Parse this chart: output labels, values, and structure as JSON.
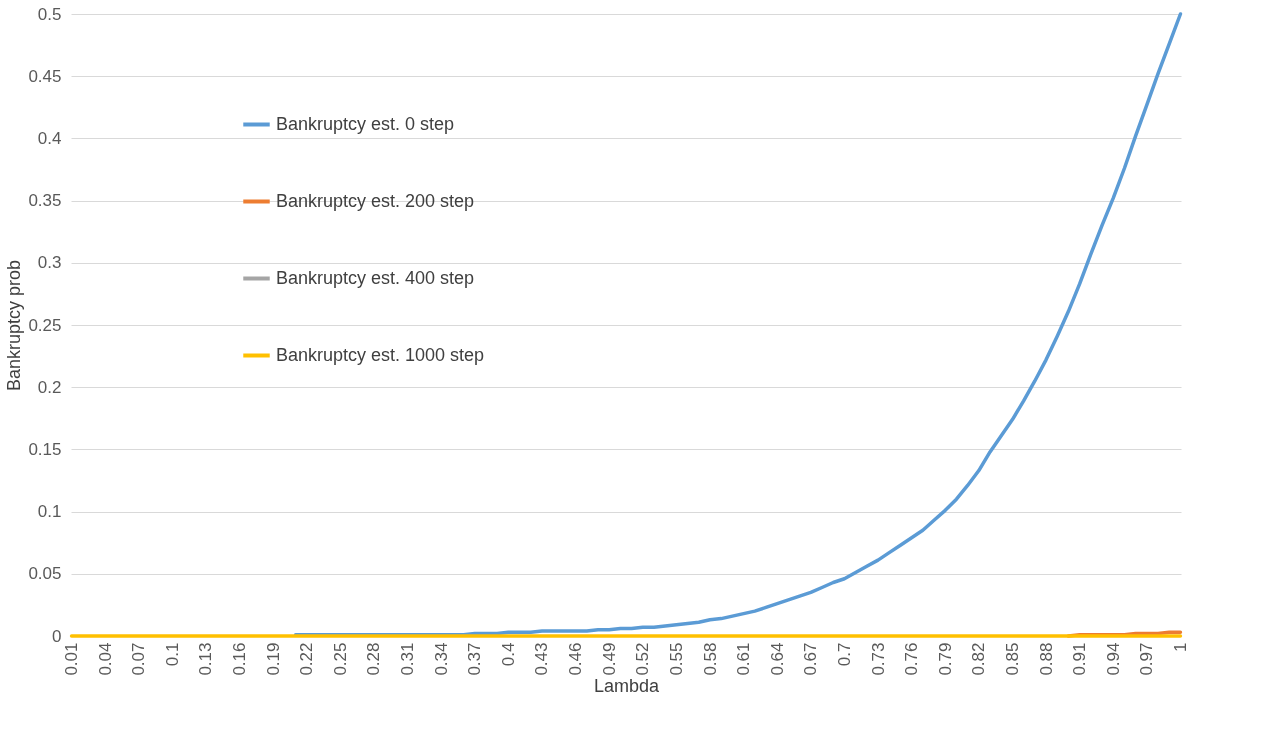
{
  "chart_data": {
    "type": "line",
    "xlabel": "Lambda",
    "ylabel": "Bankruptcy prob",
    "categories": [
      "0.01",
      null,
      null,
      "0.04",
      null,
      null,
      "0.07",
      null,
      null,
      "0.1",
      null,
      null,
      "0.13",
      null,
      null,
      "0.16",
      null,
      null,
      "0.19",
      null,
      null,
      "0.22",
      null,
      null,
      "0.25",
      null,
      null,
      "0.28",
      null,
      null,
      "0.31",
      null,
      null,
      "0.34",
      null,
      null,
      "0.37",
      null,
      null,
      "0.4",
      null,
      null,
      "0.43",
      null,
      null,
      "0.46",
      null,
      null,
      "0.49",
      null,
      null,
      "0.52",
      null,
      null,
      "0.55",
      null,
      null,
      "0.58",
      null,
      null,
      "0.61",
      null,
      null,
      "0.64",
      null,
      null,
      "0.67",
      null,
      null,
      "0.7",
      null,
      null,
      "0.73",
      null,
      null,
      "0.76",
      null,
      null,
      "0.79",
      null,
      null,
      "0.82",
      null,
      null,
      "0.85",
      null,
      null,
      "0.88",
      null,
      null,
      "0.91",
      null,
      null,
      "0.94",
      null,
      null,
      "0.97",
      null,
      null,
      "1"
    ],
    "series": [
      {
        "name": "Bankruptcy est. 0 step",
        "color": "#5b9bd5",
        "values": [
          null,
          null,
          null,
          null,
          null,
          null,
          null,
          null,
          null,
          null,
          null,
          null,
          null,
          null,
          null,
          null,
          null,
          null,
          null,
          null,
          0.001,
          0.001,
          0.001,
          0.001,
          0.001,
          0.001,
          0.001,
          0.001,
          0.001,
          0.001,
          0.001,
          0.001,
          0.001,
          0.001,
          0.001,
          0.001,
          0.002,
          0.002,
          0.002,
          0.003,
          0.003,
          0.003,
          0.004,
          0.004,
          0.004,
          0.004,
          0.004,
          0.005,
          0.005,
          0.006,
          0.006,
          0.007,
          0.007,
          0.008,
          0.009,
          0.01,
          0.011,
          0.013,
          0.014,
          0.016,
          0.018,
          0.02,
          0.023,
          0.026,
          0.029,
          0.032,
          0.035,
          0.039,
          0.043,
          0.046,
          0.051,
          0.056,
          0.061,
          0.067,
          0.073,
          0.079,
          0.085,
          0.093,
          0.101,
          0.11,
          0.121,
          0.133,
          0.148,
          0.161,
          0.174,
          0.189,
          0.205,
          0.222,
          0.241,
          0.261,
          0.283,
          0.307,
          0.33,
          0.352,
          0.376,
          0.402,
          0.427,
          0.452,
          0.476,
          0.5
        ]
      },
      {
        "name": "Bankruptcy est. 200 step",
        "color": "#ed7d31",
        "values": [
          null,
          null,
          null,
          null,
          null,
          null,
          null,
          null,
          null,
          null,
          null,
          null,
          null,
          null,
          null,
          null,
          null,
          null,
          null,
          null,
          null,
          null,
          null,
          null,
          null,
          null,
          null,
          null,
          null,
          null,
          null,
          null,
          null,
          null,
          null,
          null,
          null,
          null,
          null,
          null,
          null,
          null,
          null,
          null,
          null,
          null,
          null,
          null,
          null,
          null,
          null,
          null,
          null,
          null,
          null,
          null,
          null,
          null,
          null,
          null,
          null,
          null,
          null,
          null,
          null,
          null,
          null,
          null,
          null,
          null,
          null,
          null,
          null,
          null,
          null,
          null,
          null,
          null,
          null,
          null,
          null,
          null,
          null,
          null,
          null,
          null,
          null,
          null,
          null,
          0,
          0.001,
          0.001,
          0.001,
          0.001,
          0.001,
          0.002,
          0.002,
          0.002,
          0.003,
          0.003
        ]
      },
      {
        "name": "Bankruptcy est. 400 step",
        "color": "#a5a5a5",
        "values": [
          null,
          null,
          null,
          null,
          null,
          null,
          null,
          null,
          null,
          null,
          null,
          null,
          null,
          null,
          null,
          null,
          null,
          null,
          null,
          null,
          null,
          null,
          null,
          null,
          null,
          null,
          null,
          null,
          null,
          null,
          null,
          null,
          null,
          null,
          null,
          null,
          null,
          null,
          null,
          null,
          null,
          null,
          null,
          null,
          null,
          null,
          null,
          null,
          null,
          null,
          null,
          null,
          null,
          null,
          null,
          null,
          null,
          null,
          null,
          null,
          null,
          null,
          null,
          null,
          null,
          null,
          null,
          null,
          null,
          null,
          null,
          null,
          null,
          null,
          null,
          null,
          null,
          null,
          null,
          null,
          null,
          null,
          null,
          null,
          null,
          null,
          null,
          null,
          null,
          null,
          null,
          null,
          null,
          null,
          null,
          null,
          null,
          null,
          null,
          null
        ]
      },
      {
        "name": "Bankruptcy est. 1000 step",
        "color": "#ffc000",
        "values": [
          0,
          0,
          0,
          0,
          0,
          0,
          0,
          0,
          0,
          0,
          0,
          0,
          0,
          0,
          0,
          0,
          0,
          0,
          0,
          0,
          0,
          0,
          0,
          0,
          0,
          0,
          0,
          0,
          0,
          0,
          0,
          0,
          0,
          0,
          0,
          0,
          0,
          0,
          0,
          0,
          0,
          0,
          0,
          0,
          0,
          0,
          0,
          0,
          0,
          0,
          0,
          0,
          0,
          0,
          0,
          0,
          0,
          0,
          0,
          0,
          0,
          0,
          0,
          0,
          0,
          0,
          0,
          0,
          0,
          0,
          0,
          0,
          0,
          0,
          0,
          0,
          0,
          0,
          0,
          0,
          0,
          0,
          0,
          0,
          0,
          0,
          0,
          0,
          0,
          0,
          0,
          0,
          0,
          0,
          0,
          0,
          0,
          0,
          0,
          0
        ]
      }
    ],
    "ylim": [
      0,
      0.5
    ],
    "yticks": [
      0,
      0.05,
      0.1,
      0.15,
      0.2,
      0.25,
      0.3,
      0.35,
      0.4,
      0.45,
      0.5
    ],
    "grid": "y",
    "legend": "top left",
    "marker": "none",
    "line_style": "solid"
  }
}
